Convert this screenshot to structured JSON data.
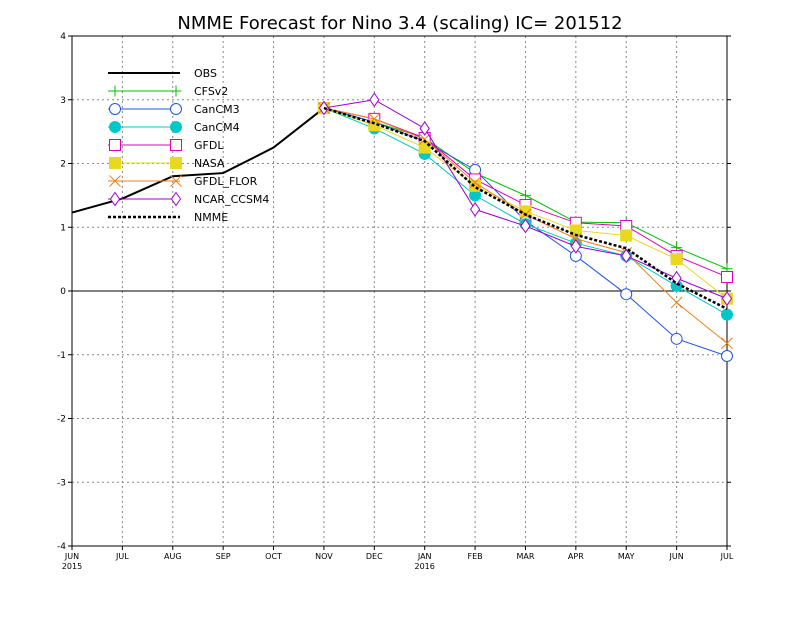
{
  "chart_data": {
    "type": "line",
    "title": "NMME Forecast for Nino 3.4 (scaling) IC= 201512",
    "x_categories": [
      "JUN",
      "JUL",
      "AUG",
      "SEP",
      "OCT",
      "NOV",
      "DEC",
      "JAN",
      "FEB",
      "MAR",
      "APR",
      "MAY",
      "JUN",
      "JUL"
    ],
    "x_sublabels": {
      "0": "2015",
      "7": "2016"
    },
    "xlim": [
      0,
      13
    ],
    "ylim": [
      -4,
      4
    ],
    "yticks": [
      -4,
      -3,
      -2,
      -1,
      0,
      1,
      2,
      3,
      4
    ],
    "grid": true,
    "legend_position": "top-left",
    "series": [
      {
        "name": "OBS",
        "color": "#000000",
        "marker": "none",
        "dashed": false,
        "width": 2,
        "x": [
          0,
          1,
          2,
          3,
          4,
          5
        ],
        "y": [
          1.23,
          1.45,
          1.8,
          1.85,
          2.25,
          2.87
        ]
      },
      {
        "name": "CFSv2",
        "color": "#00c000",
        "marker": "plus",
        "dashed": false,
        "width": 1,
        "x": [
          5,
          6,
          7,
          8,
          9,
          10,
          11,
          12,
          13
        ],
        "y": [
          2.87,
          2.65,
          2.4,
          1.85,
          1.5,
          1.08,
          1.07,
          0.68,
          0.35
        ]
      },
      {
        "name": "CanCM3",
        "color": "#1f55e0",
        "marker": "open-circle",
        "dashed": false,
        "width": 1,
        "x": [
          5,
          6,
          7,
          8,
          9,
          10,
          11,
          12,
          13
        ],
        "y": [
          2.87,
          2.65,
          2.35,
          1.9,
          1.1,
          0.55,
          -0.05,
          -0.75,
          -1.02
        ]
      },
      {
        "name": "CanCM4",
        "color": "#00c8c8",
        "marker": "filled-circle",
        "dashed": false,
        "width": 1,
        "x": [
          5,
          6,
          7,
          8,
          9,
          10,
          11,
          12,
          13
        ],
        "y": [
          2.87,
          2.55,
          2.15,
          1.5,
          1.05,
          0.75,
          0.55,
          0.08,
          -0.37
        ]
      },
      {
        "name": "GFDL",
        "color": "#e000c0",
        "marker": "open-square",
        "dashed": false,
        "width": 1,
        "x": [
          5,
          6,
          7,
          8,
          9,
          10,
          11,
          12,
          13
        ],
        "y": [
          2.87,
          2.7,
          2.4,
          1.75,
          1.35,
          1.07,
          1.02,
          0.55,
          0.22
        ]
      },
      {
        "name": "NASA",
        "color": "#e8d820",
        "marker": "filled-square",
        "dashed": false,
        "width": 1,
        "x": [
          5,
          6,
          7,
          8,
          9,
          10,
          11,
          12,
          13
        ],
        "y": [
          2.87,
          2.6,
          2.25,
          1.65,
          1.25,
          0.95,
          0.87,
          0.5,
          -0.12
        ]
      },
      {
        "name": "GFDL_FLOR",
        "color": "#f08020",
        "marker": "x",
        "dashed": false,
        "width": 1,
        "x": [
          5,
          6,
          7,
          8,
          9,
          10,
          11,
          12,
          13
        ],
        "y": [
          2.87,
          2.7,
          2.38,
          1.7,
          1.2,
          0.82,
          0.6,
          -0.18,
          -0.82
        ]
      },
      {
        "name": "NCAR_CCSM4",
        "color": "#a000d0",
        "marker": "diamond",
        "dashed": false,
        "width": 1,
        "x": [
          5,
          6,
          7,
          8,
          9,
          10,
          11,
          12,
          13
        ],
        "y": [
          2.87,
          3.0,
          2.55,
          1.28,
          1.02,
          0.7,
          0.55,
          0.2,
          -0.12
        ]
      },
      {
        "name": "NMME",
        "color": "#000000",
        "marker": "none",
        "dashed": true,
        "width": 2.5,
        "x": [
          5,
          6,
          7,
          8,
          9,
          10,
          11,
          12,
          13
        ],
        "y": [
          2.87,
          2.63,
          2.35,
          1.63,
          1.2,
          0.88,
          0.67,
          0.12,
          -0.28
        ]
      }
    ]
  }
}
